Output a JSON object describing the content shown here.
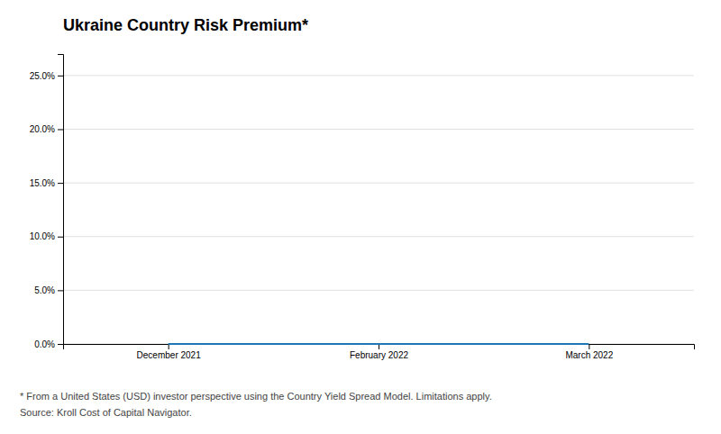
{
  "chart_data": {
    "type": "line",
    "title": "Ukraine Country Risk Premium*",
    "categories": [
      "December 2021",
      "February 2022",
      "March 2022"
    ],
    "values": [
      0.0,
      0.0,
      0.0
    ],
    "ylim": [
      0,
      0.27
    ],
    "yticks": [
      {
        "value": 0.0,
        "label": "0.0%"
      },
      {
        "value": 0.05,
        "label": "5.0%"
      },
      {
        "value": 0.1,
        "label": "10.0%"
      },
      {
        "value": 0.15,
        "label": "15.0%"
      },
      {
        "value": 0.2,
        "label": "20.0%"
      },
      {
        "value": 0.25,
        "label": "25.0%"
      }
    ],
    "grid": true,
    "annotations": [
      "* From a United States (USD) investor perspective using the Country Yield Spread Model. Limitations apply.",
      "Source: Kroll Cost of Capital Navigator."
    ]
  }
}
